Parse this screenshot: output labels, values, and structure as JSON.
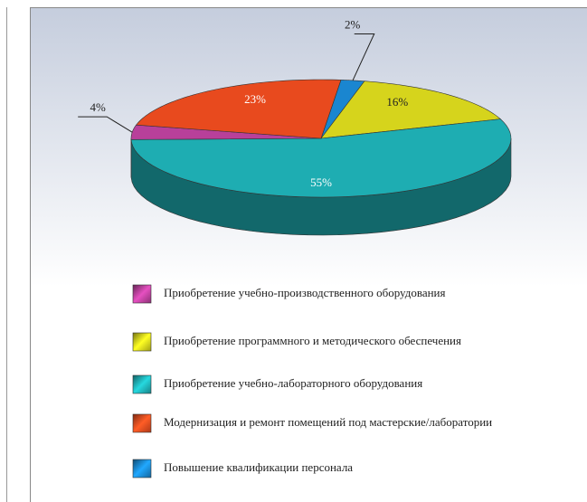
{
  "chart_data": {
    "type": "pie3d",
    "categories": [
      "Приобретение учебно-производственного оборудования",
      "Приобретение программного и методического обеспечения",
      "Приобретение учебно-лабораторного оборудования",
      "Модернизация и ремонт помещений под мастерские/лаборатории",
      "Повышение квалификации персонала"
    ],
    "values": [
      4,
      16,
      55,
      23,
      2
    ],
    "value_labels": [
      "4%",
      "16%",
      "55%",
      "23%",
      "2%"
    ],
    "colors": [
      "#b8409a",
      "#d6d41c",
      "#1eadb2",
      "#e84a1e",
      "#1a86d0"
    ],
    "legend": "bottom"
  }
}
